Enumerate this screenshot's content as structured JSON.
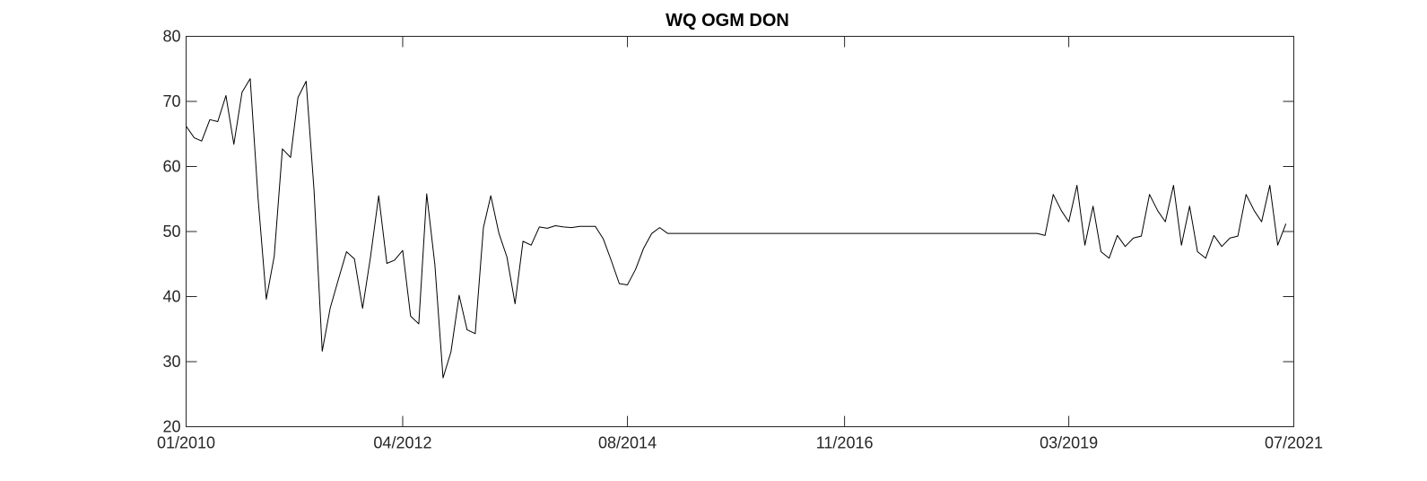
{
  "chart_data": {
    "type": "line",
    "title": "WQ OGM DON",
    "xlabel": "",
    "ylabel": "",
    "xlim": [
      "2010-01-01",
      "2021-07-01"
    ],
    "ylim": [
      20,
      80
    ],
    "yticks": [
      20,
      30,
      40,
      50,
      60,
      70,
      80
    ],
    "xticks": [
      {
        "date": "2010-01-01",
        "label": "01/2010"
      },
      {
        "date": "2012-04-01",
        "label": "04/2012"
      },
      {
        "date": "2014-08-01",
        "label": "08/2014"
      },
      {
        "date": "2016-11-01",
        "label": "11/2016"
      },
      {
        "date": "2019-03-01",
        "label": "03/2019"
      },
      {
        "date": "2021-07-01",
        "label": "07/2021"
      }
    ],
    "grid": false,
    "series": [
      {
        "color": "#000000",
        "points": [
          [
            "2010-01-01",
            66.2
          ],
          [
            "2010-02-01",
            64.4
          ],
          [
            "2010-03-01",
            63.9
          ],
          [
            "2010-04-01",
            67.2
          ],
          [
            "2010-05-01",
            66.9
          ],
          [
            "2010-06-01",
            70.9
          ],
          [
            "2010-07-01",
            63.4
          ],
          [
            "2010-08-01",
            71.4
          ],
          [
            "2010-09-01",
            73.5
          ],
          [
            "2010-10-01",
            55.0
          ],
          [
            "2010-11-01",
            39.6
          ],
          [
            "2010-12-01",
            46.2
          ],
          [
            "2011-01-01",
            62.7
          ],
          [
            "2011-02-01",
            61.4
          ],
          [
            "2011-03-01",
            70.6
          ],
          [
            "2011-04-01",
            73.1
          ],
          [
            "2011-05-01",
            56.3
          ],
          [
            "2011-06-01",
            31.6
          ],
          [
            "2011-07-01",
            38.2
          ],
          [
            "2011-08-01",
            42.6
          ],
          [
            "2011-09-01",
            46.9
          ],
          [
            "2011-10-01",
            45.8
          ],
          [
            "2011-11-01",
            38.2
          ],
          [
            "2011-12-01",
            46.1
          ],
          [
            "2012-01-01",
            55.5
          ],
          [
            "2012-02-01",
            45.1
          ],
          [
            "2012-03-01",
            45.6
          ],
          [
            "2012-04-01",
            47.1
          ],
          [
            "2012-05-01",
            37.0
          ],
          [
            "2012-06-01",
            35.8
          ],
          [
            "2012-07-01",
            55.8
          ],
          [
            "2012-08-01",
            44.9
          ],
          [
            "2012-09-01",
            27.5
          ],
          [
            "2012-10-01",
            31.5
          ],
          [
            "2012-11-01",
            40.2
          ],
          [
            "2012-12-01",
            34.9
          ],
          [
            "2013-01-01",
            34.3
          ],
          [
            "2013-02-01",
            50.6
          ],
          [
            "2013-03-01",
            55.5
          ],
          [
            "2013-04-01",
            49.7
          ],
          [
            "2013-05-01",
            46.1
          ],
          [
            "2013-06-01",
            38.9
          ],
          [
            "2013-07-01",
            48.5
          ],
          [
            "2013-08-01",
            47.9
          ],
          [
            "2013-09-01",
            50.7
          ],
          [
            "2013-10-01",
            50.5
          ],
          [
            "2013-11-01",
            50.9
          ],
          [
            "2013-12-01",
            50.7
          ],
          [
            "2014-01-01",
            50.6
          ],
          [
            "2014-02-01",
            50.8
          ],
          [
            "2014-03-01",
            50.8
          ],
          [
            "2014-04-01",
            50.8
          ],
          [
            "2014-05-01",
            48.9
          ],
          [
            "2014-06-01",
            45.5
          ],
          [
            "2014-07-01",
            42.0
          ],
          [
            "2014-08-01",
            41.8
          ],
          [
            "2014-09-01",
            44.2
          ],
          [
            "2014-10-01",
            47.4
          ],
          [
            "2014-11-01",
            49.7
          ],
          [
            "2014-12-01",
            50.6
          ],
          [
            "2015-01-01",
            49.7
          ],
          [
            "2015-02-01",
            49.7
          ],
          [
            "2018-11-01",
            49.7
          ],
          [
            "2018-12-01",
            49.4
          ],
          [
            "2019-01-01",
            55.7
          ],
          [
            "2019-02-01",
            53.2
          ],
          [
            "2019-03-01",
            51.5
          ],
          [
            "2019-04-01",
            57.1
          ],
          [
            "2019-05-01",
            47.9
          ],
          [
            "2019-06-01",
            53.9
          ],
          [
            "2019-07-01",
            46.9
          ],
          [
            "2019-08-01",
            45.9
          ],
          [
            "2019-09-01",
            49.4
          ],
          [
            "2019-10-01",
            47.7
          ],
          [
            "2019-11-01",
            49.0
          ],
          [
            "2019-12-01",
            49.3
          ],
          [
            "2020-01-01",
            55.7
          ],
          [
            "2020-02-01",
            53.2
          ],
          [
            "2020-03-01",
            51.5
          ],
          [
            "2020-04-01",
            57.1
          ],
          [
            "2020-05-01",
            47.9
          ],
          [
            "2020-06-01",
            53.9
          ],
          [
            "2020-07-01",
            46.9
          ],
          [
            "2020-08-01",
            45.9
          ],
          [
            "2020-09-01",
            49.4
          ],
          [
            "2020-10-01",
            47.7
          ],
          [
            "2020-11-01",
            49.0
          ],
          [
            "2020-12-01",
            49.3
          ],
          [
            "2021-01-01",
            55.7
          ],
          [
            "2021-02-01",
            53.2
          ],
          [
            "2021-03-01",
            51.5
          ],
          [
            "2021-04-01",
            57.1
          ],
          [
            "2021-05-01",
            47.9
          ],
          [
            "2021-06-01",
            51.2
          ]
        ]
      }
    ]
  }
}
